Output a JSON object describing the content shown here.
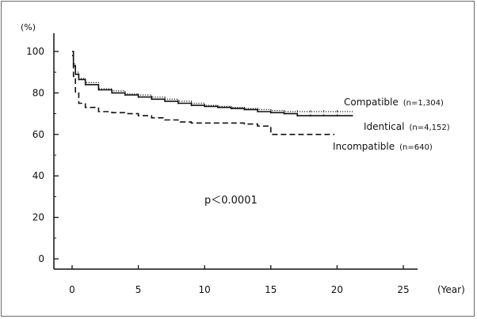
{
  "chart_data": {
    "type": "line",
    "title": "",
    "xlabel": "(Year)",
    "ylabel": "(%)",
    "xlim": [
      -2,
      26
    ],
    "ylim": [
      -5,
      108
    ],
    "xticks": [
      0,
      5,
      10,
      15,
      20,
      25
    ],
    "yticks": [
      0,
      20,
      40,
      60,
      80,
      100
    ],
    "grid": false,
    "legend_placement": "labels at right end of curves",
    "annotation": "p＜0.0001",
    "series": [
      {
        "name": "Compatible",
        "n_label": "(n=1,304)",
        "style": "dotted",
        "color": "#222222",
        "x": [
          0,
          0.1,
          0.25,
          0.5,
          1,
          2,
          3,
          4,
          5,
          6,
          7,
          8,
          9,
          10,
          11,
          12,
          13,
          14,
          15,
          16,
          17,
          18,
          19,
          20,
          21.2
        ],
        "y": [
          100,
          94,
          90,
          87,
          85,
          82,
          81,
          79.5,
          79,
          78,
          77,
          76,
          75,
          74,
          73.5,
          73,
          72.5,
          72,
          71.5,
          71,
          71,
          71,
          71,
          71,
          71
        ]
      },
      {
        "name": "Identical",
        "n_label": "(n=4,152)",
        "style": "solid",
        "color": "#111111",
        "x": [
          0,
          0.1,
          0.25,
          0.5,
          1,
          2,
          3,
          4,
          5,
          6,
          7,
          8,
          9,
          10,
          11,
          12,
          13,
          14,
          15,
          16,
          17,
          18,
          19,
          20,
          21.2
        ],
        "y": [
          100,
          93,
          89,
          86.5,
          84,
          81.5,
          80,
          79,
          78,
          77,
          76,
          75,
          74,
          73.5,
          73,
          72.5,
          72,
          71,
          70.5,
          70,
          69,
          69,
          69,
          69,
          69
        ]
      },
      {
        "name": "Incompatible",
        "n_label": "(n=640)",
        "style": "dashed",
        "color": "#111111",
        "x": [
          0,
          0.1,
          0.25,
          0.5,
          1,
          2,
          3,
          4,
          5,
          6,
          7,
          8,
          9,
          10,
          11,
          12,
          13,
          14,
          15,
          16,
          17,
          18,
          19,
          19.8
        ],
        "y": [
          98,
          88,
          80,
          75,
          73,
          71,
          70.5,
          70,
          69,
          68,
          67,
          66,
          65.5,
          65.5,
          65.5,
          65.5,
          65,
          64,
          60,
          60,
          60,
          60,
          60,
          60
        ]
      }
    ]
  }
}
